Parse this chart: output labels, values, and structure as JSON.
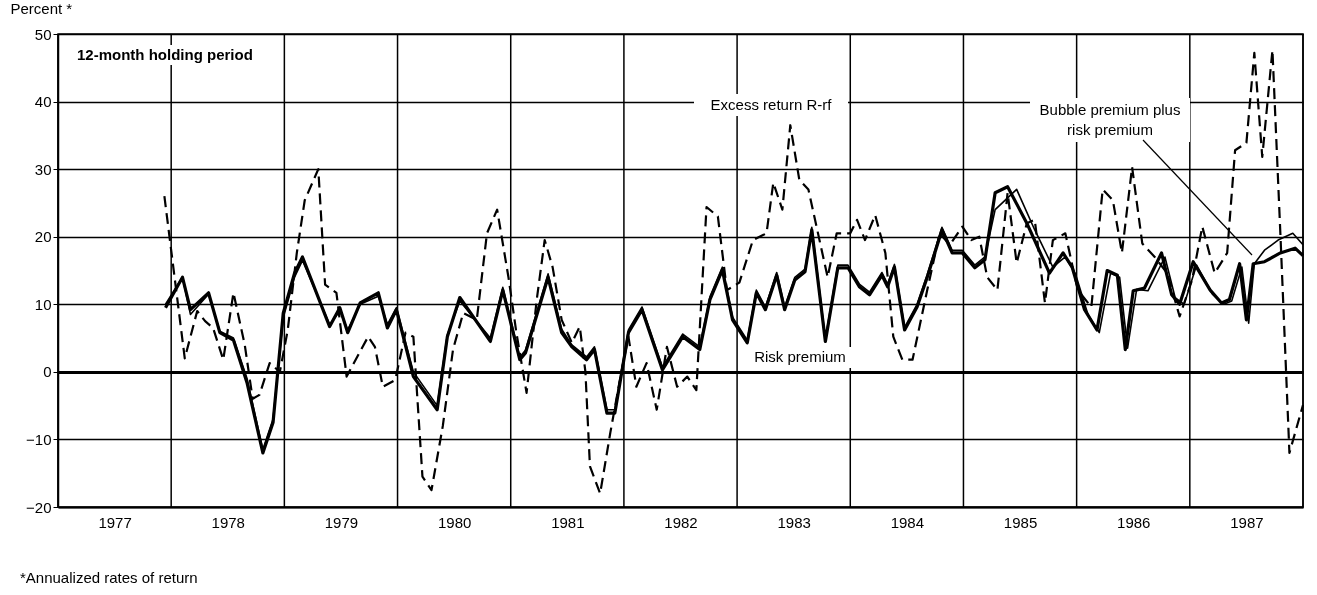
{
  "chart_data": {
    "type": "line",
    "subtitle": "12-month holding period",
    "ylabel": "Percent *",
    "annotations": [
      "*Annualized rates of return"
    ],
    "xlim": [
      1977,
      1988
    ],
    "ylim": [
      -20,
      50
    ],
    "yticks": [
      -20,
      -10,
      0,
      10,
      20,
      30,
      40,
      50
    ],
    "xticks": [
      {
        "value": 1977,
        "label": null
      },
      {
        "value": 1977.5,
        "label": "1977"
      },
      {
        "value": 1978,
        "label": null
      },
      {
        "value": 1978.5,
        "label": "1978"
      },
      {
        "value": 1979,
        "label": null
      },
      {
        "value": 1979.5,
        "label": "1979"
      },
      {
        "value": 1980,
        "label": null
      },
      {
        "value": 1980.5,
        "label": "1980"
      },
      {
        "value": 1981,
        "label": null
      },
      {
        "value": 1981.5,
        "label": "1981"
      },
      {
        "value": 1982,
        "label": null
      },
      {
        "value": 1982.5,
        "label": "1982"
      },
      {
        "value": 1983,
        "label": null
      },
      {
        "value": 1983.5,
        "label": "1983"
      },
      {
        "value": 1984,
        "label": null
      },
      {
        "value": 1984.5,
        "label": "1984"
      },
      {
        "value": 1985,
        "label": null
      },
      {
        "value": 1985.5,
        "label": "1985"
      },
      {
        "value": 1986,
        "label": null
      },
      {
        "value": 1986.5,
        "label": "1986"
      },
      {
        "value": 1987,
        "label": null
      },
      {
        "value": 1987.5,
        "label": "1987"
      },
      {
        "value": 1988,
        "label": null
      }
    ],
    "grid": true,
    "marker": "none",
    "series": [
      {
        "name": "Excess return R-rf",
        "color": "#000000",
        "line_style": "dashed",
        "x": [
          1977.94,
          1978.12,
          1978.23,
          1978.3,
          1978.37,
          1978.46,
          1978.55,
          1978.65,
          1978.72,
          1978.78,
          1978.87,
          1978.96,
          1979.03,
          1979.11,
          1979.18,
          1979.3,
          1979.36,
          1979.46,
          1979.55,
          1979.74,
          1979.8,
          1979.87,
          1979.98,
          1980.07,
          1980.14,
          1980.22,
          1980.3,
          1980.4,
          1980.49,
          1980.58,
          1980.7,
          1980.79,
          1980.88,
          1980.98,
          1981.05,
          1981.14,
          1981.23,
          1981.3,
          1981.37,
          1981.45,
          1981.54,
          1981.61,
          1981.66,
          1981.7,
          1981.79,
          1981.88,
          1981.96,
          1982.04,
          1982.11,
          1982.2,
          1982.29,
          1982.38,
          1982.47,
          1982.56,
          1982.64,
          1982.73,
          1982.83,
          1982.91,
          1983.02,
          1983.14,
          1983.26,
          1983.32,
          1983.4,
          1983.47,
          1983.55,
          1983.63,
          1983.8,
          1983.88,
          1984.0,
          1984.06,
          1984.13,
          1984.22,
          1984.31,
          1984.38,
          1984.46,
          1984.55,
          1984.68,
          1984.79,
          1984.88,
          1984.99,
          1985.07,
          1985.14,
          1985.21,
          1985.3,
          1985.39,
          1985.47,
          1985.56,
          1985.63,
          1985.72,
          1985.79,
          1985.9,
          1986.01,
          1986.13,
          1986.23,
          1986.32,
          1986.4,
          1986.49,
          1986.58,
          1986.69,
          1986.8,
          1986.91,
          1987.02,
          1987.11,
          1987.22,
          1987.33,
          1987.4,
          1987.5,
          1987.57,
          1987.64,
          1987.73,
          1987.8,
          1987.88,
          1988.0
        ],
        "values": [
          26,
          2,
          9,
          7.5,
          6.5,
          1.8,
          11.7,
          4,
          -4,
          -3.4,
          1.3,
          0,
          6.2,
          17.6,
          25.4,
          30,
          12.9,
          11.7,
          -0.7,
          5.2,
          3.7,
          -2.2,
          -1.2,
          5.8,
          5.2,
          -15.5,
          -17.5,
          -8,
          3.3,
          8.7,
          7.7,
          20.5,
          24,
          14,
          5.8,
          -3.1,
          10.7,
          19.5,
          15.5,
          7.7,
          4.3,
          6.7,
          0,
          -14,
          -18,
          -9,
          -1.6,
          5.2,
          -2.2,
          1.3,
          -5.6,
          3.7,
          -2.2,
          -0.7,
          -2.7,
          24.4,
          23,
          12.1,
          13.2,
          19.5,
          20.5,
          28,
          24,
          36.5,
          28.4,
          27,
          14,
          20.5,
          20.5,
          22.5,
          19.5,
          23.2,
          17.6,
          5.2,
          1.8,
          1.8,
          12.1,
          20.5,
          18.8,
          21.5,
          19.5,
          20,
          14,
          12.1,
          26.5,
          16.1,
          22,
          22.5,
          10.2,
          19.5,
          20.5,
          12.1,
          9.6,
          27,
          25.4,
          17.6,
          30.3,
          19,
          17,
          14.6,
          8.2,
          13.6,
          21.5,
          14.6,
          17.6,
          32.8,
          33.9,
          47.2,
          31.8,
          47.6,
          20.5,
          -12,
          -4.9
        ]
      },
      {
        "name": "Risk premium",
        "color": "#000000",
        "line_style": "solid",
        "x": [
          1977.95,
          1978.1,
          1978.17,
          1978.33,
          1978.43,
          1978.55,
          1978.67,
          1978.81,
          1978.9,
          1978.99,
          1979.09,
          1979.16,
          1979.4,
          1979.49,
          1979.56,
          1979.67,
          1979.83,
          1979.91,
          1979.99,
          1980.14,
          1980.35,
          1980.44,
          1980.55,
          1980.82,
          1980.93,
          1981.08,
          1981.13,
          1981.33,
          1981.45,
          1981.54,
          1981.67,
          1981.74,
          1981.85,
          1981.92,
          1982.04,
          1982.16,
          1982.34,
          1982.52,
          1982.67,
          1982.76,
          1982.87,
          1982.96,
          1983.09,
          1983.17,
          1983.25,
          1983.35,
          1983.42,
          1983.51,
          1983.6,
          1983.66,
          1983.78,
          1983.89,
          1983.98,
          1984.08,
          1984.17,
          1984.28,
          1984.33,
          1984.39,
          1984.48,
          1984.59,
          1984.68,
          1984.81,
          1984.9,
          1984.99,
          1985.1,
          1985.19,
          1985.28,
          1985.39,
          1985.56,
          1985.76,
          1985.88,
          1985.96,
          1986.07,
          1986.18,
          1986.27,
          1986.36,
          1986.43,
          1986.5,
          1986.6,
          1986.75,
          1986.84,
          1986.91,
          1987.03,
          1987.18,
          1987.28,
          1987.35,
          1987.44,
          1987.5,
          1987.56,
          1987.66,
          1987.8,
          1987.93,
          1988.0
        ],
        "values": [
          9.5,
          14,
          9.2,
          11.7,
          5.8,
          4.7,
          -1.6,
          -12,
          -7.5,
          8.7,
          14.6,
          17,
          6.7,
          9.5,
          5.8,
          10.2,
          11.7,
          6.5,
          9.2,
          -0.7,
          -5.6,
          5.2,
          11,
          4.5,
          12.1,
          1.8,
          2.8,
          14,
          5.8,
          3.7,
          1.8,
          3.3,
          -6.1,
          -6.1,
          5.8,
          9.2,
          0.3,
          5.2,
          3.3,
          10.7,
          15.1,
          7.7,
          4.3,
          11.7,
          9.2,
          14.3,
          9.2,
          13.6,
          14.8,
          21,
          4.5,
          15.4,
          15.4,
          12.6,
          11.4,
          14.3,
          12.6,
          15.5,
          6.2,
          9.6,
          14,
          21,
          17.6,
          17.6,
          15.4,
          16.6,
          26.5,
          27.4,
          22,
          14.6,
          17.6,
          15.5,
          9.2,
          6.2,
          15,
          14.3,
          3.3,
          12,
          12.4,
          17.6,
          11.4,
          10,
          16.3,
          12.1,
          10.2,
          10.7,
          16,
          7.7,
          16,
          16.3,
          17.6,
          18.3,
          17.2
        ]
      },
      {
        "name": "Bubble premium plus risk premium",
        "color": "#000000",
        "line_style": "solid",
        "x": [
          1977.95,
          1978.1,
          1978.17,
          1978.33,
          1978.43,
          1978.55,
          1978.67,
          1978.81,
          1978.9,
          1978.99,
          1979.09,
          1979.16,
          1979.4,
          1979.49,
          1979.56,
          1979.67,
          1979.83,
          1979.91,
          1979.99,
          1980.14,
          1980.35,
          1980.44,
          1980.55,
          1980.82,
          1980.93,
          1981.08,
          1981.13,
          1981.33,
          1981.45,
          1981.54,
          1981.67,
          1981.74,
          1981.85,
          1981.92,
          1982.04,
          1982.16,
          1982.34,
          1982.52,
          1982.67,
          1982.76,
          1982.87,
          1982.96,
          1983.09,
          1983.17,
          1983.25,
          1983.35,
          1983.42,
          1983.51,
          1983.6,
          1983.66,
          1983.78,
          1983.89,
          1983.98,
          1984.08,
          1984.17,
          1984.28,
          1984.33,
          1984.39,
          1984.48,
          1984.59,
          1984.68,
          1984.81,
          1984.9,
          1984.99,
          1985.1,
          1985.19,
          1985.28,
          1985.47,
          1985.63,
          1985.79,
          1985.9,
          1985.99,
          1986.1,
          1986.2,
          1986.3,
          1986.38,
          1986.45,
          1986.53,
          1986.63,
          1986.78,
          1986.87,
          1986.95,
          1987.06,
          1987.2,
          1987.3,
          1987.37,
          1987.46,
          1987.52,
          1987.57,
          1987.66,
          1987.78,
          1987.91,
          1988.0
        ],
        "values": [
          10,
          14,
          8.5,
          11.5,
          6,
          5,
          -1,
          -11.5,
          -7,
          8,
          14,
          16.5,
          7,
          9,
          6.2,
          10,
          11.2,
          7,
          9.5,
          0,
          -5,
          5.5,
          10.5,
          5,
          12.5,
          2.2,
          3.2,
          14.5,
          6.3,
          4,
          2.2,
          3.7,
          -5.6,
          -5.6,
          6.2,
          9.6,
          0.7,
          5.6,
          3.7,
          11.1,
          15.5,
          8.1,
          4.7,
          12.1,
          9.6,
          14.7,
          9.6,
          14,
          15.2,
          21.4,
          4.9,
          15.8,
          15.8,
          13,
          11.8,
          14.7,
          13,
          15.9,
          6.6,
          10,
          14.4,
          21.4,
          18,
          18,
          15.8,
          17,
          24,
          27,
          21,
          15.5,
          17,
          14.5,
          8.5,
          5.8,
          14.6,
          14,
          3.5,
          12.2,
          12,
          17,
          11,
          10,
          15.8,
          11.5,
          10,
          10.5,
          15.5,
          7.2,
          16,
          18,
          19.5,
          20.5,
          18.8
        ]
      }
    ]
  }
}
